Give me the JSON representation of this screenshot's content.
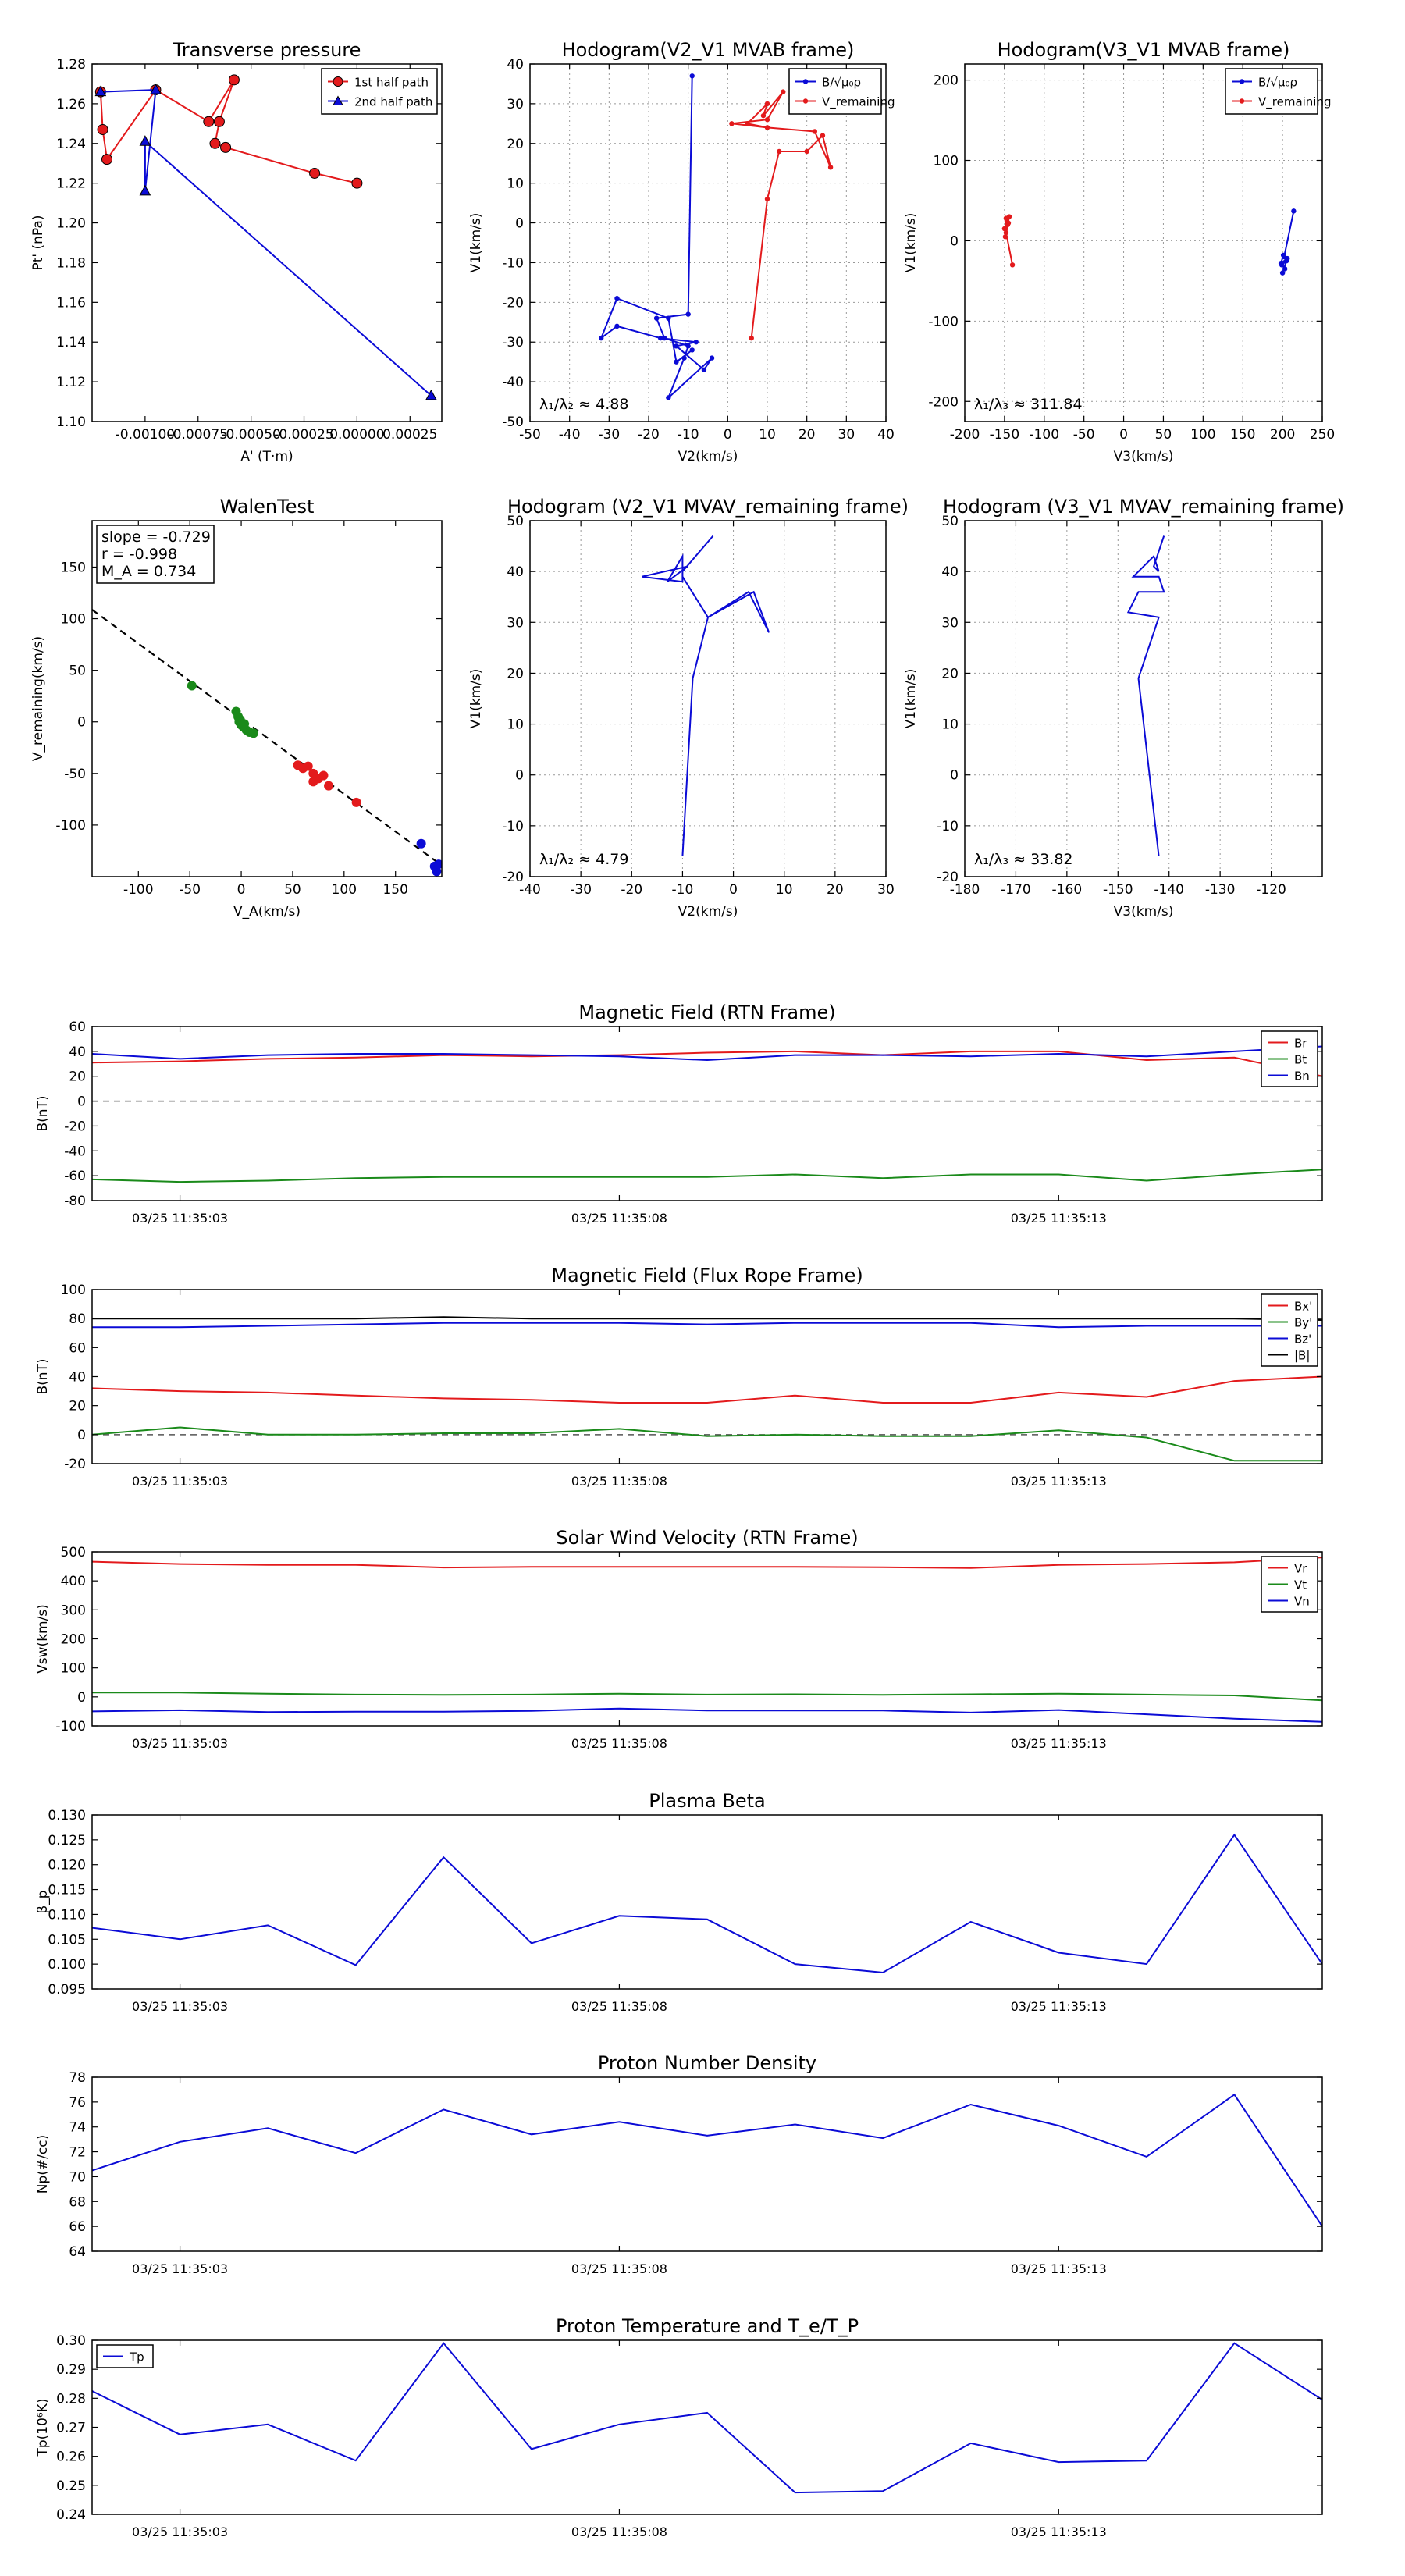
{
  "chart_data": [
    {
      "id": "tp",
      "type": "line",
      "title": "Transverse pressure",
      "xlabel": "A' (T·m)",
      "ylabel": "Pt' (nPa)",
      "xlim": [
        -0.00125,
        0.0004
      ],
      "ylim": [
        1.1,
        1.28
      ],
      "xticks": [
        -0.001,
        -0.00075,
        -0.0005,
        -0.00025,
        0.0,
        0.00025
      ],
      "xticklabels": [
        "-0.00100",
        "-0.00075",
        "-0.00050",
        "-0.00025",
        "0.00000",
        "0.00025"
      ],
      "yticks": [
        1.1,
        1.12,
        1.14,
        1.16,
        1.18,
        1.2,
        1.22,
        1.24,
        1.26,
        1.28
      ],
      "yticklabels": [
        "1.10",
        "1.12",
        "1.14",
        "1.16",
        "1.18",
        "1.20",
        "1.22",
        "1.24",
        "1.26",
        "1.28"
      ],
      "grid": false,
      "legend_loc": "top-right",
      "series": [
        {
          "name": "1st half path",
          "color": "#e31a1c",
          "marker": "circle",
          "x": [
            0.0,
            -0.0002,
            -0.00062,
            -0.00067,
            -0.00065,
            -0.00058,
            -0.0007,
            -0.00095,
            -0.00118,
            -0.0012,
            -0.00121
          ],
          "y": [
            1.22,
            1.225,
            1.238,
            1.24,
            1.251,
            1.272,
            1.251,
            1.267,
            1.232,
            1.247,
            1.266
          ]
        },
        {
          "name": "2nd half path",
          "color": "#0b0bd6",
          "marker": "triangle",
          "x": [
            -0.00121,
            -0.00095,
            -0.001,
            -0.001,
            0.00035
          ],
          "y": [
            1.266,
            1.267,
            1.216,
            1.241,
            1.113
          ]
        }
      ]
    },
    {
      "id": "h1",
      "type": "line",
      "title": "Hodogram(V2_V1 MVAB frame)",
      "xlabel": "V2(km/s)",
      "ylabel": "V1(km/s)",
      "xlim": [
        -50,
        40
      ],
      "ylim": [
        -50,
        40
      ],
      "xticks": [
        -50,
        -40,
        -30,
        -20,
        -10,
        0,
        10,
        20,
        30,
        40
      ],
      "yticks": [
        -50,
        -40,
        -30,
        -20,
        -10,
        0,
        10,
        20,
        30,
        40
      ],
      "grid": true,
      "legend_loc": "top-right",
      "annotation": "λ₁/λ₂ ≈ 4.88",
      "series": [
        {
          "name": "B/√μ₀ρ",
          "color": "#0b0bd6",
          "marker": "dot",
          "x": [
            -9,
            -10,
            -18,
            -16,
            -10,
            -11,
            -15,
            -4,
            -6,
            -13,
            -8,
            -17,
            -28,
            -32,
            -28,
            -15,
            -13,
            -9
          ],
          "y": [
            37,
            -23,
            -24,
            -29,
            -31,
            -34,
            -44,
            -34,
            -37,
            -31,
            -30,
            -29,
            -26,
            -29,
            -19,
            -24,
            -35,
            -32
          ]
        },
        {
          "name": "V_remaining",
          "color": "#e31a1c",
          "marker": "dot",
          "x": [
            6,
            10,
            13,
            20,
            24,
            26,
            22,
            10,
            5,
            10,
            9,
            14,
            10,
            1,
            10
          ],
          "y": [
            -29,
            6,
            18,
            18,
            22,
            14,
            23,
            24,
            25,
            30,
            27,
            33,
            26,
            25,
            24
          ]
        }
      ]
    },
    {
      "id": "h2",
      "type": "scatter",
      "title": "Hodogram(V3_V1 MVAB frame)",
      "xlabel": "V3(km/s)",
      "ylabel": "V1(km/s)",
      "xlim": [
        -200,
        250
      ],
      "ylim": [
        -225,
        220
      ],
      "xticks": [
        -200,
        -150,
        -100,
        -50,
        0,
        50,
        100,
        150,
        200,
        250
      ],
      "yticks": [
        -200,
        -100,
        0,
        100,
        200
      ],
      "grid": true,
      "legend_loc": "top-right",
      "annotation": "λ₁/λ₃ ≈ 311.84",
      "series": [
        {
          "name": "B/√μ₀ρ",
          "color": "#0b0bd6",
          "marker": "dot",
          "x": [
            214,
            202,
            205,
            199,
            203,
            200,
            206,
            198,
            201
          ],
          "y": [
            37,
            -20,
            -25,
            -30,
            -35,
            -40,
            -22,
            -28,
            -18
          ]
        },
        {
          "name": "V_remaining",
          "color": "#e31a1c",
          "marker": "dot",
          "x": [
            -140,
            -148,
            -146,
            -150,
            -147,
            -144,
            -149,
            -145,
            -148
          ],
          "y": [
            -30,
            10,
            20,
            15,
            25,
            30,
            5,
            22,
            28
          ]
        }
      ]
    },
    {
      "id": "walen",
      "type": "scatter",
      "title": "WalenTest",
      "xlabel": "V_A(km/s)",
      "ylabel": "V_remaining(km/s)",
      "xlim": [
        -145,
        195
      ],
      "ylim": [
        -150,
        195
      ],
      "xticks": [
        -100,
        -50,
        0,
        50,
        100,
        150
      ],
      "yticks": [
        -100,
        -50,
        0,
        50,
        100,
        150
      ],
      "grid": false,
      "annotation_lines": [
        "slope = -0.729",
        "r = -0.998",
        "M_A = 0.734"
      ],
      "fit": {
        "slope": -0.729,
        "intercept": 3
      },
      "series": [
        {
          "name": "green",
          "color": "#1a8a1a",
          "x": [
            -48,
            -5,
            -3,
            -2,
            0,
            2,
            5,
            -1,
            3,
            8,
            12
          ],
          "y": [
            35,
            10,
            5,
            0,
            -3,
            -5,
            -8,
            2,
            -2,
            -10,
            -11
          ]
        },
        {
          "name": "red",
          "color": "#e31a1c",
          "x": [
            55,
            60,
            65,
            70,
            75,
            80,
            85,
            70,
            112
          ],
          "y": [
            -42,
            -45,
            -43,
            -50,
            -55,
            -52,
            -62,
            -58,
            -78
          ]
        },
        {
          "name": "blue",
          "color": "#0b0bd6",
          "x": [
            175,
            188,
            190,
            192
          ],
          "y": [
            -118,
            -140,
            -145,
            -138
          ]
        }
      ]
    },
    {
      "id": "h3",
      "type": "line",
      "title": "Hodogram (V2_V1 MVAV_remaining frame)",
      "xlabel": "V2(km/s)",
      "ylabel": "V1(km/s)",
      "xlim": [
        -40,
        30
      ],
      "ylim": [
        -20,
        50
      ],
      "xticks": [
        -40,
        -30,
        -20,
        -10,
        0,
        10,
        20,
        30
      ],
      "yticks": [
        -20,
        -10,
        0,
        10,
        20,
        30,
        40,
        50
      ],
      "grid": true,
      "annotation": "λ₁/λ₂ ≈ 4.79",
      "series": [
        {
          "name": "blue",
          "color": "#0b0bd6",
          "x": [
            -10,
            -8,
            -5,
            3,
            7,
            4,
            -5,
            -10,
            -10,
            -13,
            -9,
            -18,
            -10,
            -10,
            -4
          ],
          "y": [
            -16,
            19,
            31,
            36,
            28,
            36,
            31,
            39,
            43,
            38,
            41,
            39,
            38,
            40,
            47
          ]
        }
      ]
    },
    {
      "id": "h4",
      "type": "line",
      "title": "Hodogram (V3_V1 MVAV_remaining frame)",
      "xlabel": "V3(km/s)",
      "ylabel": "V1(km/s)",
      "xlim": [
        -180,
        -110
      ],
      "ylim": [
        -20,
        50
      ],
      "xticks": [
        -180,
        -170,
        -160,
        -150,
        -140,
        -130,
        -120
      ],
      "yticks": [
        -20,
        -10,
        0,
        10,
        20,
        30,
        40,
        50
      ],
      "grid": true,
      "annotation": "λ₁/λ₃ ≈ 33.82",
      "series": [
        {
          "name": "blue",
          "color": "#0b0bd6",
          "x": [
            -142,
            -146,
            -142,
            -148,
            -146,
            -141,
            -142,
            -147,
            -143,
            -142,
            -143,
            -141
          ],
          "y": [
            -16,
            19,
            31,
            32,
            36,
            36,
            39,
            39,
            43,
            40,
            41,
            47
          ]
        }
      ]
    },
    {
      "id": "mag_rtn",
      "type": "line",
      "title": "Magnetic Field (RTN Frame)",
      "ylabel": "B(nT)",
      "ylim": [
        -80,
        60
      ],
      "yticks": [
        -80,
        -60,
        -40,
        -20,
        0,
        20,
        40,
        60
      ],
      "zero_line": true,
      "legend_loc": "top-right",
      "x": [
        0,
        1,
        2,
        3,
        4,
        5,
        6,
        7,
        8,
        9,
        10,
        11,
        12,
        13,
        14
      ],
      "xlim": [
        0,
        14
      ],
      "xticks": [
        1,
        6,
        11
      ],
      "xticklabels": [
        "03/25 11:35:03",
        "03/25 11:35:08",
        "03/25 11:35:13"
      ],
      "series": [
        {
          "name": "Br",
          "color": "#e31a1c",
          "values": [
            31,
            32,
            34,
            35,
            37,
            36,
            37,
            39,
            40,
            37,
            40,
            40,
            33,
            35,
            20
          ]
        },
        {
          "name": "Bt",
          "color": "#1a8a1a",
          "values": [
            -63,
            -65,
            -64,
            -62,
            -61,
            -61,
            -61,
            -61,
            -59,
            -62,
            -59,
            -59,
            -64,
            -59,
            -55
          ]
        },
        {
          "name": "Bn",
          "color": "#0b0bd6",
          "values": [
            38,
            34,
            37,
            38,
            38,
            37,
            36,
            33,
            37,
            37,
            36,
            38,
            36,
            40,
            44
          ]
        }
      ]
    },
    {
      "id": "mag_fr",
      "type": "line",
      "title": "Magnetic Field (Flux Rope Frame)",
      "ylabel": "B(nT)",
      "ylim": [
        -20,
        100
      ],
      "yticks": [
        -20,
        0,
        20,
        40,
        60,
        80,
        100
      ],
      "zero_line": true,
      "legend_loc": "top-right",
      "x": [
        0,
        1,
        2,
        3,
        4,
        5,
        6,
        7,
        8,
        9,
        10,
        11,
        12,
        13,
        14
      ],
      "xlim": [
        0,
        14
      ],
      "xticks": [
        1,
        6,
        11
      ],
      "xticklabels": [
        "03/25 11:35:03",
        "03/25 11:35:08",
        "03/25 11:35:13"
      ],
      "series": [
        {
          "name": "Bx'",
          "color": "#e31a1c",
          "values": [
            32,
            30,
            29,
            27,
            25,
            24,
            22,
            22,
            27,
            22,
            22,
            29,
            26,
            37,
            40
          ]
        },
        {
          "name": "By'",
          "color": "#1a8a1a",
          "values": [
            0,
            5,
            0,
            0,
            1,
            1,
            4,
            -1,
            0,
            -1,
            -1,
            3,
            -2,
            -18,
            -18
          ]
        },
        {
          "name": "Bz'",
          "color": "#0b0bd6",
          "values": [
            74,
            74,
            75,
            76,
            77,
            77,
            77,
            76,
            77,
            77,
            77,
            74,
            75,
            75,
            75
          ]
        },
        {
          "name": "|B|",
          "color": "#000000",
          "values": [
            80,
            80,
            80,
            80,
            81,
            80,
            80,
            80,
            80,
            80,
            80,
            80,
            80,
            80,
            79
          ]
        }
      ]
    },
    {
      "id": "vel",
      "type": "line",
      "title": "Solar Wind Velocity (RTN Frame)",
      "ylabel": "Vsw(km/s)",
      "ylim": [
        -100,
        500
      ],
      "yticks": [
        -100,
        0,
        100,
        200,
        300,
        400,
        500
      ],
      "legend_loc": "top-right",
      "x": [
        0,
        1,
        2,
        3,
        4,
        5,
        6,
        7,
        8,
        9,
        10,
        11,
        12,
        13,
        14
      ],
      "xlim": [
        0,
        14
      ],
      "xticks": [
        1,
        6,
        11
      ],
      "xticklabels": [
        "03/25 11:35:03",
        "03/25 11:35:08",
        "03/25 11:35:13"
      ],
      "series": [
        {
          "name": "Vr",
          "color": "#e31a1c",
          "values": [
            466,
            458,
            455,
            455,
            446,
            448,
            448,
            448,
            448,
            447,
            444,
            455,
            458,
            464,
            481
          ]
        },
        {
          "name": "Vt",
          "color": "#1a8a1a",
          "values": [
            15,
            15,
            11,
            8,
            7,
            8,
            11,
            8,
            9,
            7,
            9,
            11,
            8,
            5,
            -12
          ]
        },
        {
          "name": "Vn",
          "color": "#0b0bd6",
          "values": [
            -50,
            -46,
            -52,
            -51,
            -51,
            -48,
            -40,
            -47,
            -47,
            -47,
            -54,
            -45,
            -60,
            -75,
            -86
          ]
        }
      ]
    },
    {
      "id": "beta",
      "type": "line",
      "title": "Plasma Beta",
      "ylabel": "β_p",
      "ylim": [
        0.095,
        0.13
      ],
      "yticks": [
        0.095,
        0.1,
        0.105,
        0.11,
        0.115,
        0.12,
        0.125,
        0.13
      ],
      "yticklabels": [
        "0.095",
        "0.100",
        "0.105",
        "0.110",
        "0.115",
        "0.120",
        "0.125",
        "0.130"
      ],
      "x": [
        0,
        1,
        2,
        3,
        4,
        5,
        6,
        7,
        8,
        9,
        10,
        11,
        12,
        13,
        14
      ],
      "xlim": [
        0,
        14
      ],
      "xticks": [
        1,
        6,
        11
      ],
      "xticklabels": [
        "03/25 11:35:03",
        "03/25 11:35:08",
        "03/25 11:35:13"
      ],
      "series": [
        {
          "name": "beta",
          "color": "#0b0bd6",
          "values": [
            0.1073,
            0.105,
            0.1078,
            0.0998,
            0.1215,
            0.1042,
            0.1097,
            0.109,
            0.1,
            0.0983,
            0.1085,
            0.1023,
            0.1,
            0.126,
            0.1
          ]
        }
      ]
    },
    {
      "id": "np",
      "type": "line",
      "title": "Proton Number Density",
      "ylabel": "Np(#/cc)",
      "ylim": [
        64,
        78
      ],
      "yticks": [
        64,
        66,
        68,
        70,
        72,
        74,
        76,
        78
      ],
      "x": [
        0,
        1,
        2,
        3,
        4,
        5,
        6,
        7,
        8,
        9,
        10,
        11,
        12,
        13,
        14
      ],
      "xlim": [
        0,
        14
      ],
      "xticks": [
        1,
        6,
        11
      ],
      "xticklabels": [
        "03/25 11:35:03",
        "03/25 11:35:08",
        "03/25 11:35:13"
      ],
      "series": [
        {
          "name": "Np",
          "color": "#0b0bd6",
          "values": [
            70.5,
            72.8,
            73.9,
            71.9,
            75.4,
            73.4,
            74.4,
            73.3,
            74.2,
            73.1,
            75.8,
            74.1,
            71.6,
            76.6,
            66.0
          ]
        }
      ]
    },
    {
      "id": "tp_temp",
      "type": "line",
      "title": "Proton Temperature and T_e/T_P",
      "ylabel": "Tp(10⁶K)",
      "ylim": [
        0.24,
        0.3
      ],
      "yticks": [
        0.24,
        0.25,
        0.26,
        0.27,
        0.28,
        0.29,
        0.3
      ],
      "yticklabels": [
        "0.24",
        "0.25",
        "0.26",
        "0.27",
        "0.28",
        "0.29",
        "0.30"
      ],
      "legend_loc": "top-left",
      "x": [
        0,
        1,
        2,
        3,
        4,
        5,
        6,
        7,
        8,
        9,
        10,
        11,
        12,
        13,
        14
      ],
      "xlim": [
        0,
        14
      ],
      "xticks": [
        1,
        6,
        11
      ],
      "xticklabels": [
        "03/25 11:35:03",
        "03/25 11:35:08",
        "03/25 11:35:13"
      ],
      "series": [
        {
          "name": "Tp",
          "color": "#0b0bd6",
          "values": [
            0.2825,
            0.2675,
            0.271,
            0.2585,
            0.299,
            0.2625,
            0.271,
            0.275,
            0.2475,
            0.248,
            0.2645,
            0.258,
            0.2585,
            0.299,
            0.2795
          ]
        }
      ]
    }
  ]
}
